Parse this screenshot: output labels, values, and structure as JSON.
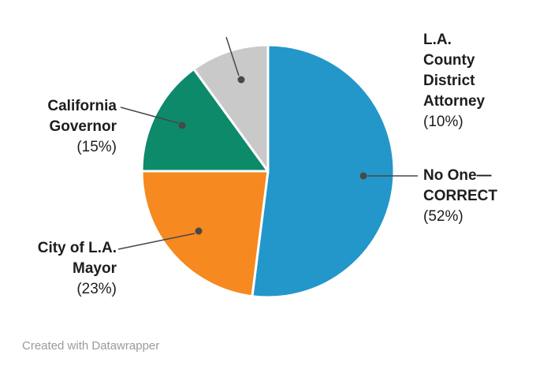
{
  "chart_data": {
    "type": "pie",
    "title": "",
    "unit": "%",
    "direction": "clockwise",
    "start_angle_deg": 0,
    "legend_position": "outside-labels",
    "grid": false,
    "categories": [
      "No One—CORRECT",
      "City of L.A. Mayor",
      "California Governor",
      "L.A. County District Attorney"
    ],
    "values": [
      52,
      23,
      15,
      10
    ],
    "slices": [
      {
        "label": "No One—CORRECT",
        "pct_text": "(52%)",
        "value": 52,
        "color": "#2397c9"
      },
      {
        "label": "City of L.A. Mayor",
        "pct_text": "(23%)",
        "value": 23,
        "color": "#f6891f"
      },
      {
        "label": "California Governor",
        "pct_text": "(15%)",
        "value": 15,
        "color": "#0c8a6a"
      },
      {
        "label": "L.A. County District Attorney",
        "pct_text": "(10%)",
        "value": 10,
        "color": "#c9c9c9"
      }
    ]
  },
  "colors": {
    "background": "#ffffff",
    "label_text": "#1d1d1d",
    "connector": "#484848",
    "slice_gap": "#ffffff",
    "credit_text": "#9a9a9a"
  },
  "footer": {
    "credit": "Created with Datawrapper"
  }
}
